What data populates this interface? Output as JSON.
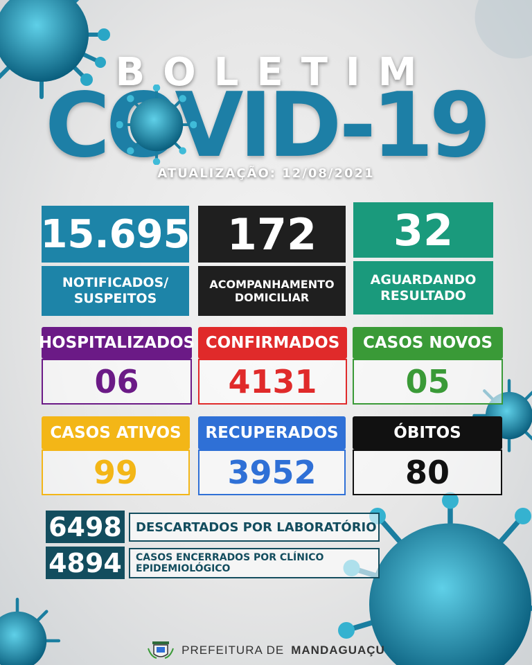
{
  "header": {
    "title_top": "BOLETIM",
    "title_main": "COVID-19",
    "update": "ATUALIZAÇÃO: 12/08/2021"
  },
  "top_stats": [
    {
      "value": "15.695",
      "label_line1": "NOTIFICADOS/",
      "label_line2": "SUSPEITOS",
      "color": "#1d84a8"
    },
    {
      "value": "172",
      "label_line1": "ACOMPANHAMENTO",
      "label_line2": "DOMICILIAR",
      "color": "#1f1f1f"
    },
    {
      "value": "32",
      "label_line1": "AGUARDANDO",
      "label_line2": "RESULTADO",
      "color": "#1a9a7c"
    }
  ],
  "grid_stats": [
    {
      "label": "HOSPITALIZADOS",
      "value": "06",
      "color": "#6b1a86"
    },
    {
      "label": "CONFIRMADOS",
      "value": "4131",
      "color": "#e02a2a"
    },
    {
      "label": "CASOS NOVOS",
      "value": "05",
      "color": "#3a9a37"
    },
    {
      "label": "CASOS ATIVOS",
      "value": "99",
      "color": "#f3b617"
    },
    {
      "label": "RECUPERADOS",
      "value": "3952",
      "color": "#2f70d6"
    },
    {
      "label": "ÓBITOS",
      "value": "80",
      "color": "#111111"
    }
  ],
  "bottom_stats": [
    {
      "value": "6498",
      "label": "DESCARTADOS POR LABORATÓRIO"
    },
    {
      "value": "4894",
      "label_line1": "CASOS ENCERRADOS POR CLÍNICO",
      "label_line2": "EPIDEMIOLÓGICO"
    }
  ],
  "footer": {
    "prefix": "PREFEITURA DE",
    "city": "MANDAGUAÇU",
    "logo_icon": "coat-of-arms-icon"
  }
}
